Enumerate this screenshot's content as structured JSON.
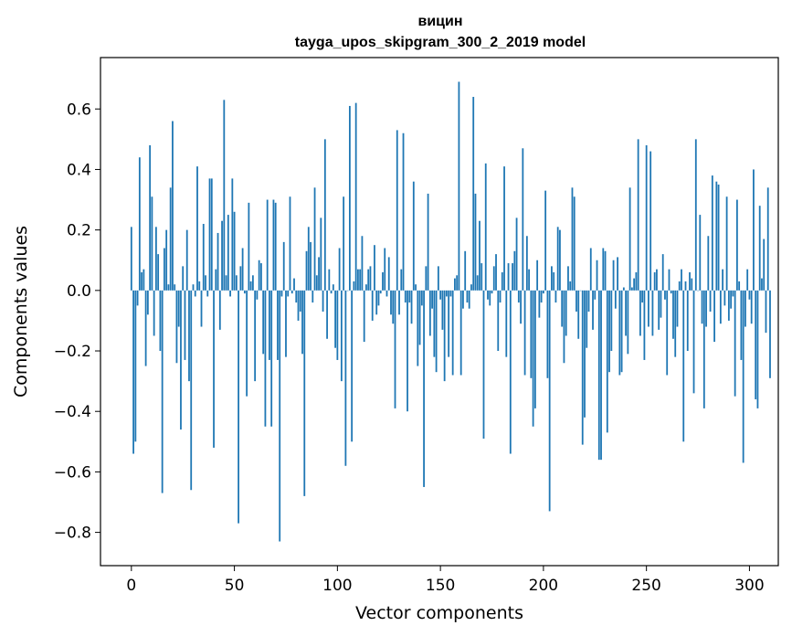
{
  "chart_data": {
    "type": "bar",
    "title": "вицин",
    "subtitle": "tayga_upos_skipgram_300_2_2019 model",
    "xlabel": "Vector components",
    "ylabel": "Components values",
    "xlim": [
      -15,
      314
    ],
    "ylim": [
      -0.91,
      0.77
    ],
    "x_ticks": [
      0,
      50,
      100,
      150,
      200,
      250,
      300
    ],
    "x_tick_labels": [
      "0",
      "50",
      "100",
      "150",
      "200",
      "250",
      "300"
    ],
    "y_ticks": [
      0.6,
      0.4,
      0.2,
      0.0,
      -0.2,
      -0.4,
      -0.6,
      -0.8
    ],
    "y_tick_labels": [
      "0.6",
      "0.4",
      "0.2",
      "0.0",
      "−0.2",
      "−0.4",
      "−0.6",
      "−0.8"
    ],
    "bar_color": "#1f77b4",
    "values": [
      0.21,
      -0.54,
      -0.5,
      -0.05,
      0.44,
      0.06,
      0.07,
      -0.25,
      -0.08,
      0.48,
      0.31,
      -0.15,
      0.21,
      0.12,
      -0.2,
      -0.67,
      0.14,
      0.2,
      0.02,
      0.34,
      0.56,
      0.02,
      -0.24,
      -0.12,
      -0.46,
      0.08,
      -0.23,
      0.2,
      -0.3,
      -0.66,
      0.02,
      -0.02,
      0.41,
      0.03,
      -0.12,
      0.22,
      0.05,
      -0.02,
      0.37,
      0.37,
      -0.52,
      0.07,
      0.19,
      -0.13,
      0.23,
      0.63,
      0.05,
      0.25,
      -0.02,
      0.37,
      0.26,
      0.05,
      -0.77,
      0.08,
      0.14,
      -0.01,
      -0.35,
      0.29,
      0.03,
      0.05,
      -0.3,
      -0.03,
      0.1,
      0.09,
      -0.21,
      -0.45,
      0.3,
      -0.23,
      -0.45,
      0.3,
      0.29,
      -0.23,
      -0.83,
      -0.02,
      0.16,
      -0.22,
      -0.02,
      0.31,
      -0.01,
      0.04,
      -0.04,
      -0.1,
      -0.07,
      -0.21,
      -0.68,
      0.13,
      0.21,
      0.16,
      -0.04,
      0.34,
      0.05,
      0.11,
      0.24,
      -0.07,
      0.5,
      -0.16,
      0.07,
      -0.01,
      0.02,
      -0.19,
      -0.23,
      0.14,
      -0.3,
      0.31,
      -0.58,
      0.0,
      0.61,
      -0.5,
      0.03,
      0.62,
      0.07,
      0.07,
      0.18,
      -0.17,
      0.02,
      0.07,
      0.08,
      -0.1,
      0.15,
      -0.08,
      -0.05,
      -0.01,
      0.06,
      0.14,
      -0.02,
      0.11,
      -0.08,
      -0.11,
      -0.39,
      0.53,
      -0.08,
      0.07,
      0.52,
      -0.04,
      -0.4,
      -0.04,
      -0.11,
      0.36,
      0.02,
      -0.25,
      -0.18,
      -0.05,
      -0.65,
      0.08,
      0.32,
      -0.15,
      -0.06,
      -0.22,
      -0.27,
      0.08,
      -0.03,
      -0.13,
      -0.3,
      -0.02,
      -0.22,
      -0.02,
      -0.28,
      0.04,
      0.05,
      0.69,
      -0.28,
      -0.06,
      0.13,
      -0.04,
      -0.06,
      0.02,
      0.64,
      0.32,
      0.05,
      0.23,
      0.09,
      -0.49,
      0.42,
      -0.03,
      -0.05,
      -0.01,
      0.08,
      0.12,
      -0.2,
      -0.04,
      0.06,
      0.41,
      -0.22,
      0.09,
      -0.54,
      0.09,
      0.13,
      0.24,
      -0.04,
      -0.11,
      0.47,
      -0.28,
      0.18,
      0.07,
      -0.29,
      -0.45,
      -0.39,
      0.1,
      -0.09,
      -0.04,
      -0.01,
      0.33,
      -0.29,
      -0.73,
      0.08,
      0.06,
      -0.04,
      0.21,
      0.2,
      -0.12,
      -0.24,
      -0.15,
      0.08,
      0.03,
      0.34,
      0.31,
      -0.07,
      -0.16,
      0.0,
      -0.51,
      -0.42,
      -0.19,
      -0.07,
      0.14,
      -0.13,
      -0.03,
      0.1,
      -0.56,
      -0.56,
      0.14,
      0.13,
      -0.47,
      -0.27,
      -0.2,
      0.1,
      -0.06,
      0.11,
      -0.28,
      -0.27,
      0.01,
      -0.15,
      -0.21,
      0.34,
      0.01,
      0.04,
      0.06,
      0.5,
      -0.15,
      -0.04,
      -0.23,
      0.48,
      -0.12,
      0.46,
      -0.15,
      0.06,
      0.07,
      -0.13,
      -0.09,
      0.12,
      -0.03,
      -0.28,
      0.07,
      -0.01,
      -0.16,
      -0.22,
      -0.12,
      0.03,
      0.07,
      -0.5,
      0.03,
      -0.2,
      0.06,
      0.04,
      -0.34,
      0.5,
      0.0,
      0.25,
      -0.11,
      -0.39,
      -0.12,
      0.18,
      -0.07,
      0.38,
      -0.17,
      0.36,
      0.35,
      -0.11,
      0.07,
      -0.05,
      0.31,
      -0.1,
      -0.06,
      -0.02,
      -0.35,
      0.3,
      0.03,
      -0.23,
      -0.57,
      -0.12,
      0.07,
      -0.03,
      -0.11,
      0.4,
      -0.36,
      -0.39,
      0.28,
      0.04,
      0.17,
      -0.14,
      0.34,
      -0.29
    ]
  }
}
